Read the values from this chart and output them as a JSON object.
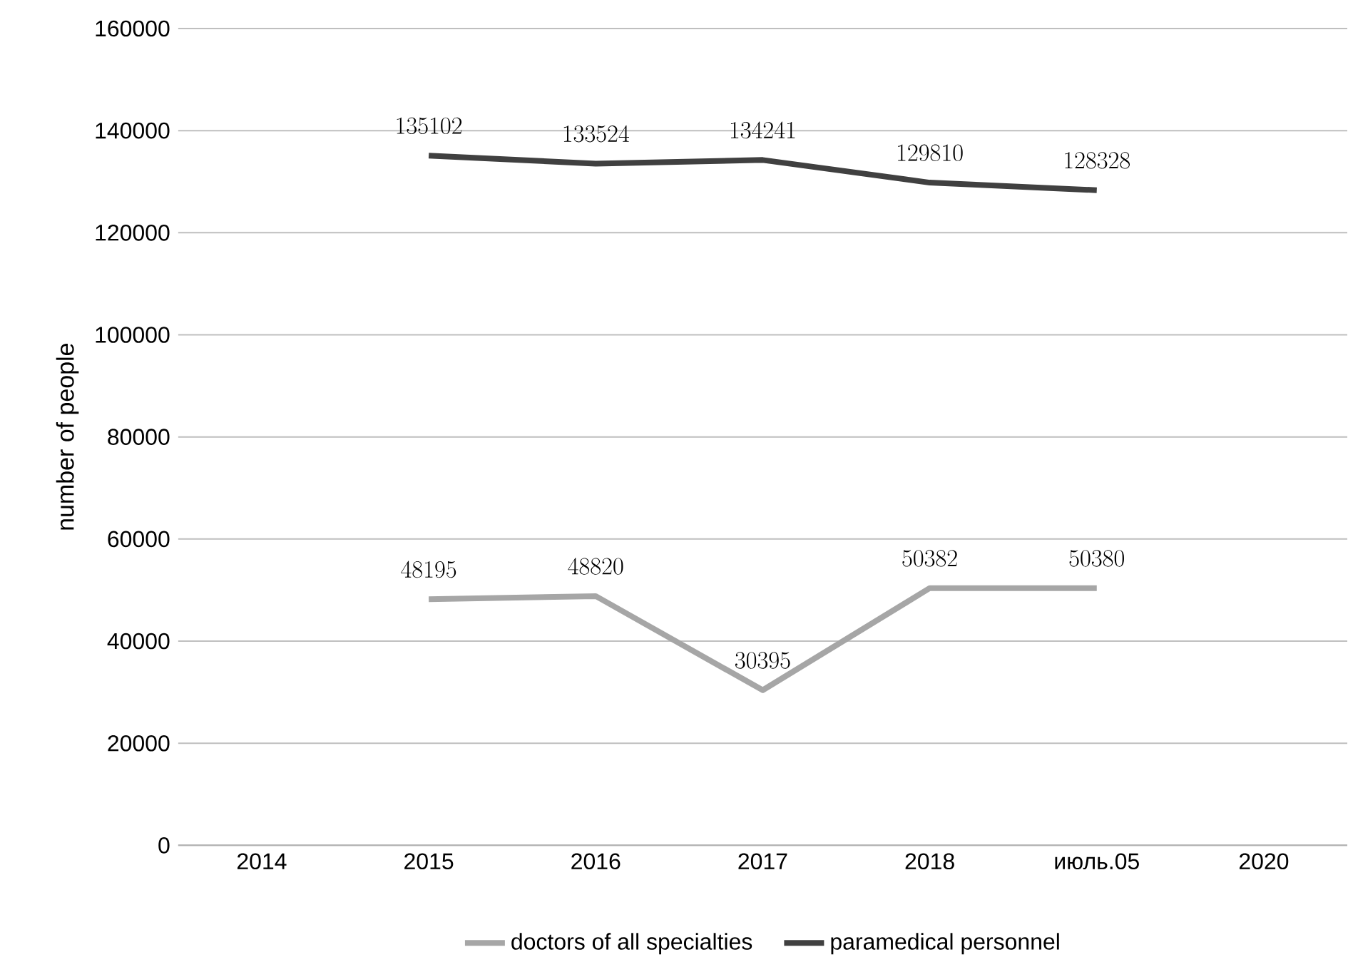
{
  "chart_data": {
    "type": "line",
    "ylabel": "number of people",
    "categories": [
      "2014",
      "2015",
      "2016",
      "2017",
      "2018",
      "июль.05",
      "2020"
    ],
    "series": [
      {
        "name": "doctors of all specialties",
        "color": "#a6a6a6",
        "values": [
          null,
          48195,
          48820,
          30395,
          50382,
          50380,
          null
        ]
      },
      {
        "name": "paramedical personnel",
        "color": "#404040",
        "values": [
          null,
          135102,
          133524,
          134241,
          129810,
          128328,
          null
        ]
      }
    ],
    "ylim": [
      0,
      160000
    ],
    "yticks": [
      0,
      20000,
      40000,
      60000,
      80000,
      100000,
      120000,
      140000,
      160000
    ],
    "grid": "y",
    "legend": "bottom",
    "data_labels": true,
    "marker": "none",
    "line_style": "solid"
  }
}
